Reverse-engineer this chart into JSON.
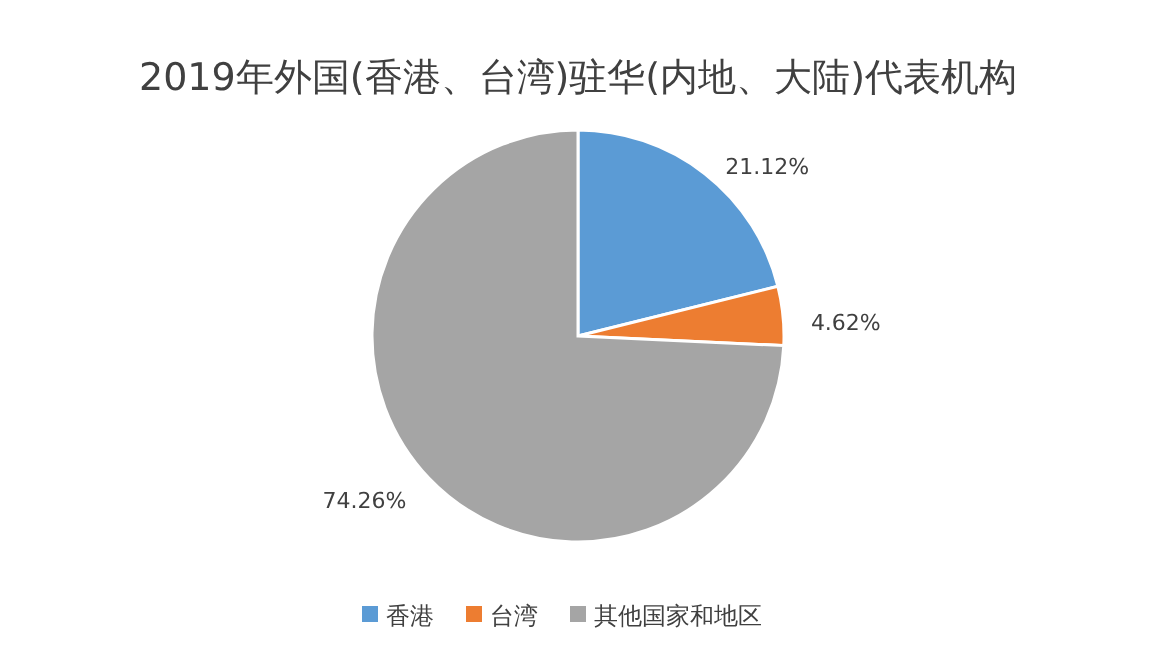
{
  "chart_data": {
    "type": "pie",
    "title": "2019年外国(香港、台湾)驻华(内地、大陆)代表机构",
    "categories": [
      "香港",
      "台湾",
      "其他国家和地区"
    ],
    "values": [
      21.12,
      4.62,
      74.26
    ],
    "value_labels": [
      "21.12%",
      "4.62%",
      "74.26%"
    ],
    "colors": [
      "#5b9bd5",
      "#ed7d31",
      "#a5a5a5"
    ],
    "legend": "bottom"
  }
}
